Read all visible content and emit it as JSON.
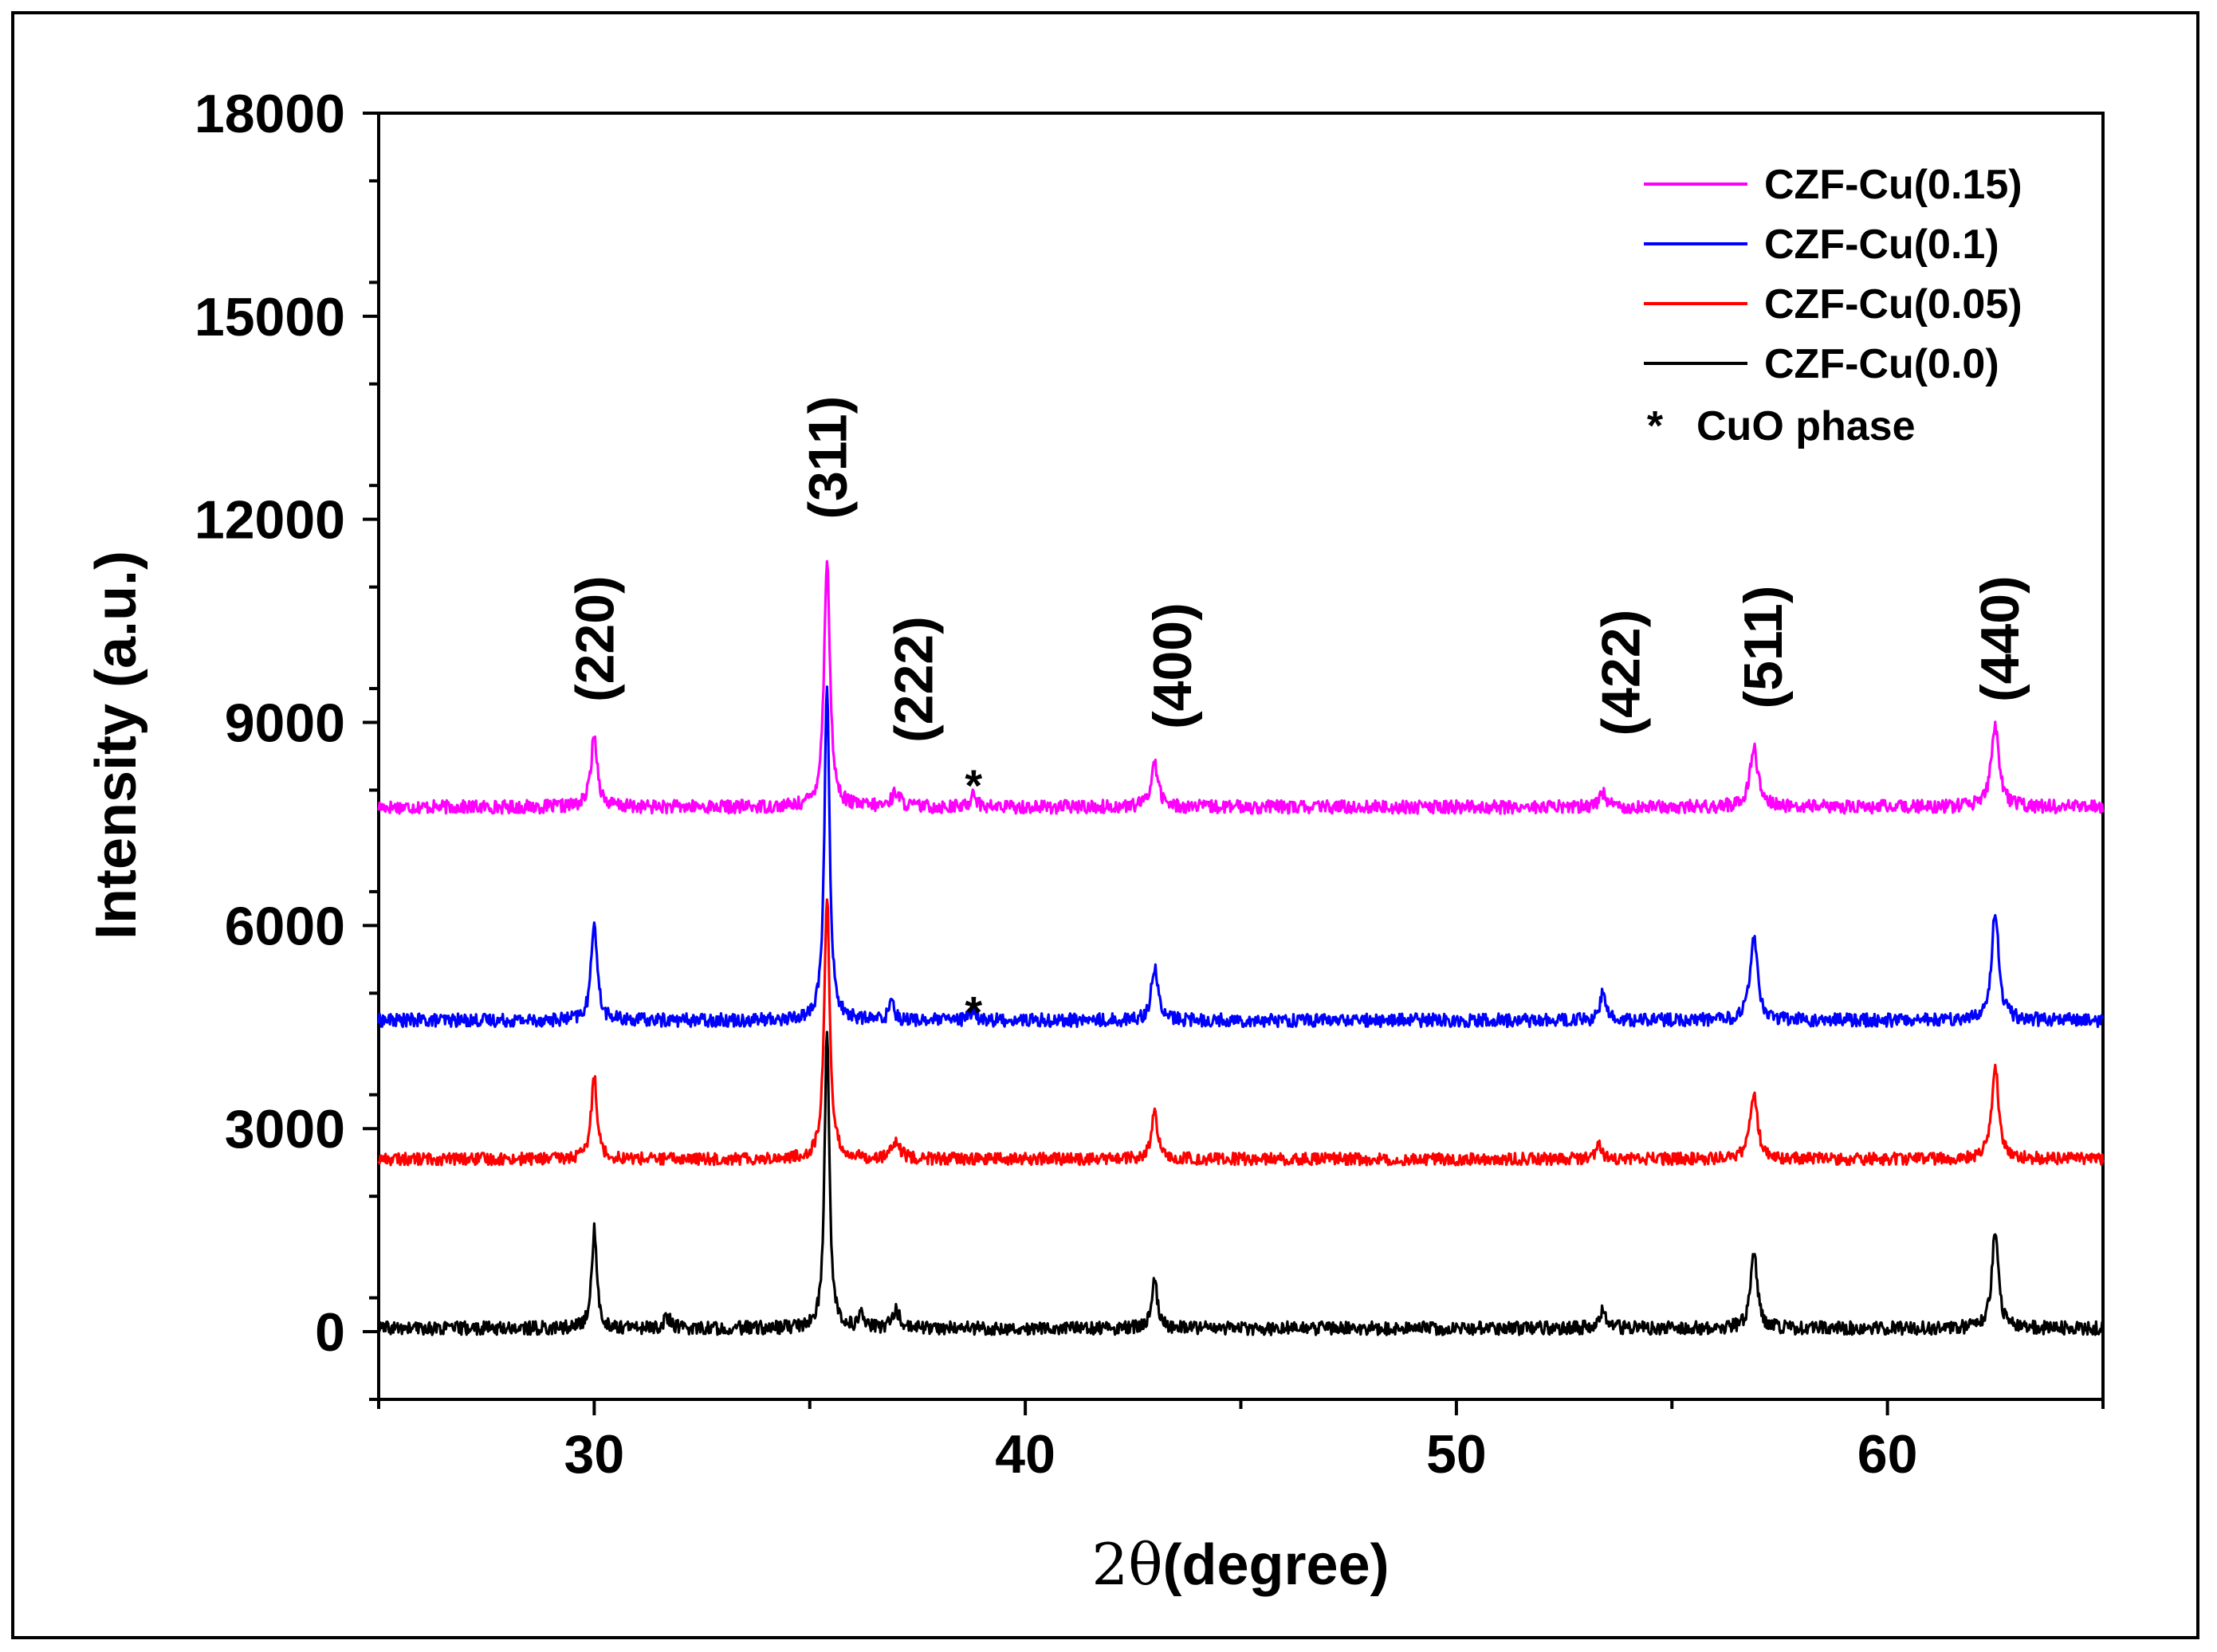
{
  "chart_data": {
    "type": "line",
    "title": "",
    "xlabel_prefix": "2θ",
    "xlabel_rest": "(degree)",
    "ylabel": "Intensity (a.u.)",
    "xlim": [
      25,
      65
    ],
    "ylim": [
      -1000,
      18000
    ],
    "xticks": [
      30,
      40,
      50,
      60
    ],
    "xtick_labels": [
      "30",
      "40",
      "50",
      "60"
    ],
    "yticks": [
      0,
      3000,
      6000,
      9000,
      12000,
      15000,
      18000
    ],
    "ytick_labels": [
      "0",
      "3000",
      "6000",
      "9000",
      "12000",
      "15000",
      "18000"
    ],
    "legend_position": "top-right",
    "series": [
      {
        "name": "CZF-Cu(0.15)",
        "color": "#ff00ff",
        "baseline": 7750,
        "noise": 110,
        "peaks": [
          [
            30.0,
            1050,
            0.18
          ],
          [
            35.4,
            3700,
            0.16
          ],
          [
            37.0,
            220,
            0.22
          ],
          [
            38.8,
            260,
            0.12
          ],
          [
            43.0,
            650,
            0.2
          ],
          [
            53.4,
            220,
            0.2
          ],
          [
            56.9,
            900,
            0.22
          ],
          [
            62.5,
            1200,
            0.22
          ]
        ]
      },
      {
        "name": "CZF-Cu(0.1)",
        "color": "#0000ff",
        "baseline": 4600,
        "noise": 110,
        "peaks": [
          [
            30.0,
            1500,
            0.16
          ],
          [
            35.4,
            5000,
            0.14
          ],
          [
            36.9,
            350,
            0.12
          ],
          [
            38.8,
            200,
            0.12
          ],
          [
            43.0,
            800,
            0.18
          ],
          [
            53.4,
            400,
            0.15
          ],
          [
            56.9,
            1250,
            0.2
          ],
          [
            62.5,
            1600,
            0.2
          ]
        ]
      },
      {
        "name": "CZF-Cu(0.05)",
        "color": "#ff0000",
        "baseline": 2550,
        "noise": 100,
        "peaks": [
          [
            30.0,
            1250,
            0.16
          ],
          [
            35.4,
            3900,
            0.15
          ],
          [
            37.0,
            220,
            0.25
          ],
          [
            43.0,
            700,
            0.16
          ],
          [
            53.3,
            250,
            0.15
          ],
          [
            56.9,
            1000,
            0.2
          ],
          [
            62.5,
            1350,
            0.2
          ]
        ]
      },
      {
        "name": "CZF-Cu(0.0)",
        "color": "#000000",
        "baseline": 50,
        "noise": 110,
        "peaks": [
          [
            30.0,
            1450,
            0.14
          ],
          [
            31.7,
            150,
            0.2
          ],
          [
            35.4,
            4450,
            0.13
          ],
          [
            36.2,
            200,
            0.12
          ],
          [
            37.0,
            260,
            0.2
          ],
          [
            43.0,
            700,
            0.16
          ],
          [
            53.4,
            300,
            0.18
          ],
          [
            56.9,
            1150,
            0.18
          ],
          [
            62.5,
            1450,
            0.18
          ]
        ]
      }
    ],
    "annotations": {
      "hkl": [
        {
          "label": "(220)",
          "x": 30.0,
          "y": 9300
        },
        {
          "label": "(311)",
          "x": 35.4,
          "y": 12000
        },
        {
          "label": "(222)",
          "x": 37.4,
          "y": 8700
        },
        {
          "label": "(400)",
          "x": 43.4,
          "y": 8900
        },
        {
          "label": "(422)",
          "x": 53.8,
          "y": 8800
        },
        {
          "label": "(511)",
          "x": 57.1,
          "y": 9200
        },
        {
          "label": "(440)",
          "x": 62.6,
          "y": 9300
        }
      ],
      "stars": [
        {
          "label": "*",
          "x": 38.8,
          "y": 8100
        },
        {
          "label": "*",
          "x": 38.8,
          "y": 4750
        }
      ]
    },
    "legend_note_symbol": "*",
    "legend_note_text": "CuO phase"
  }
}
